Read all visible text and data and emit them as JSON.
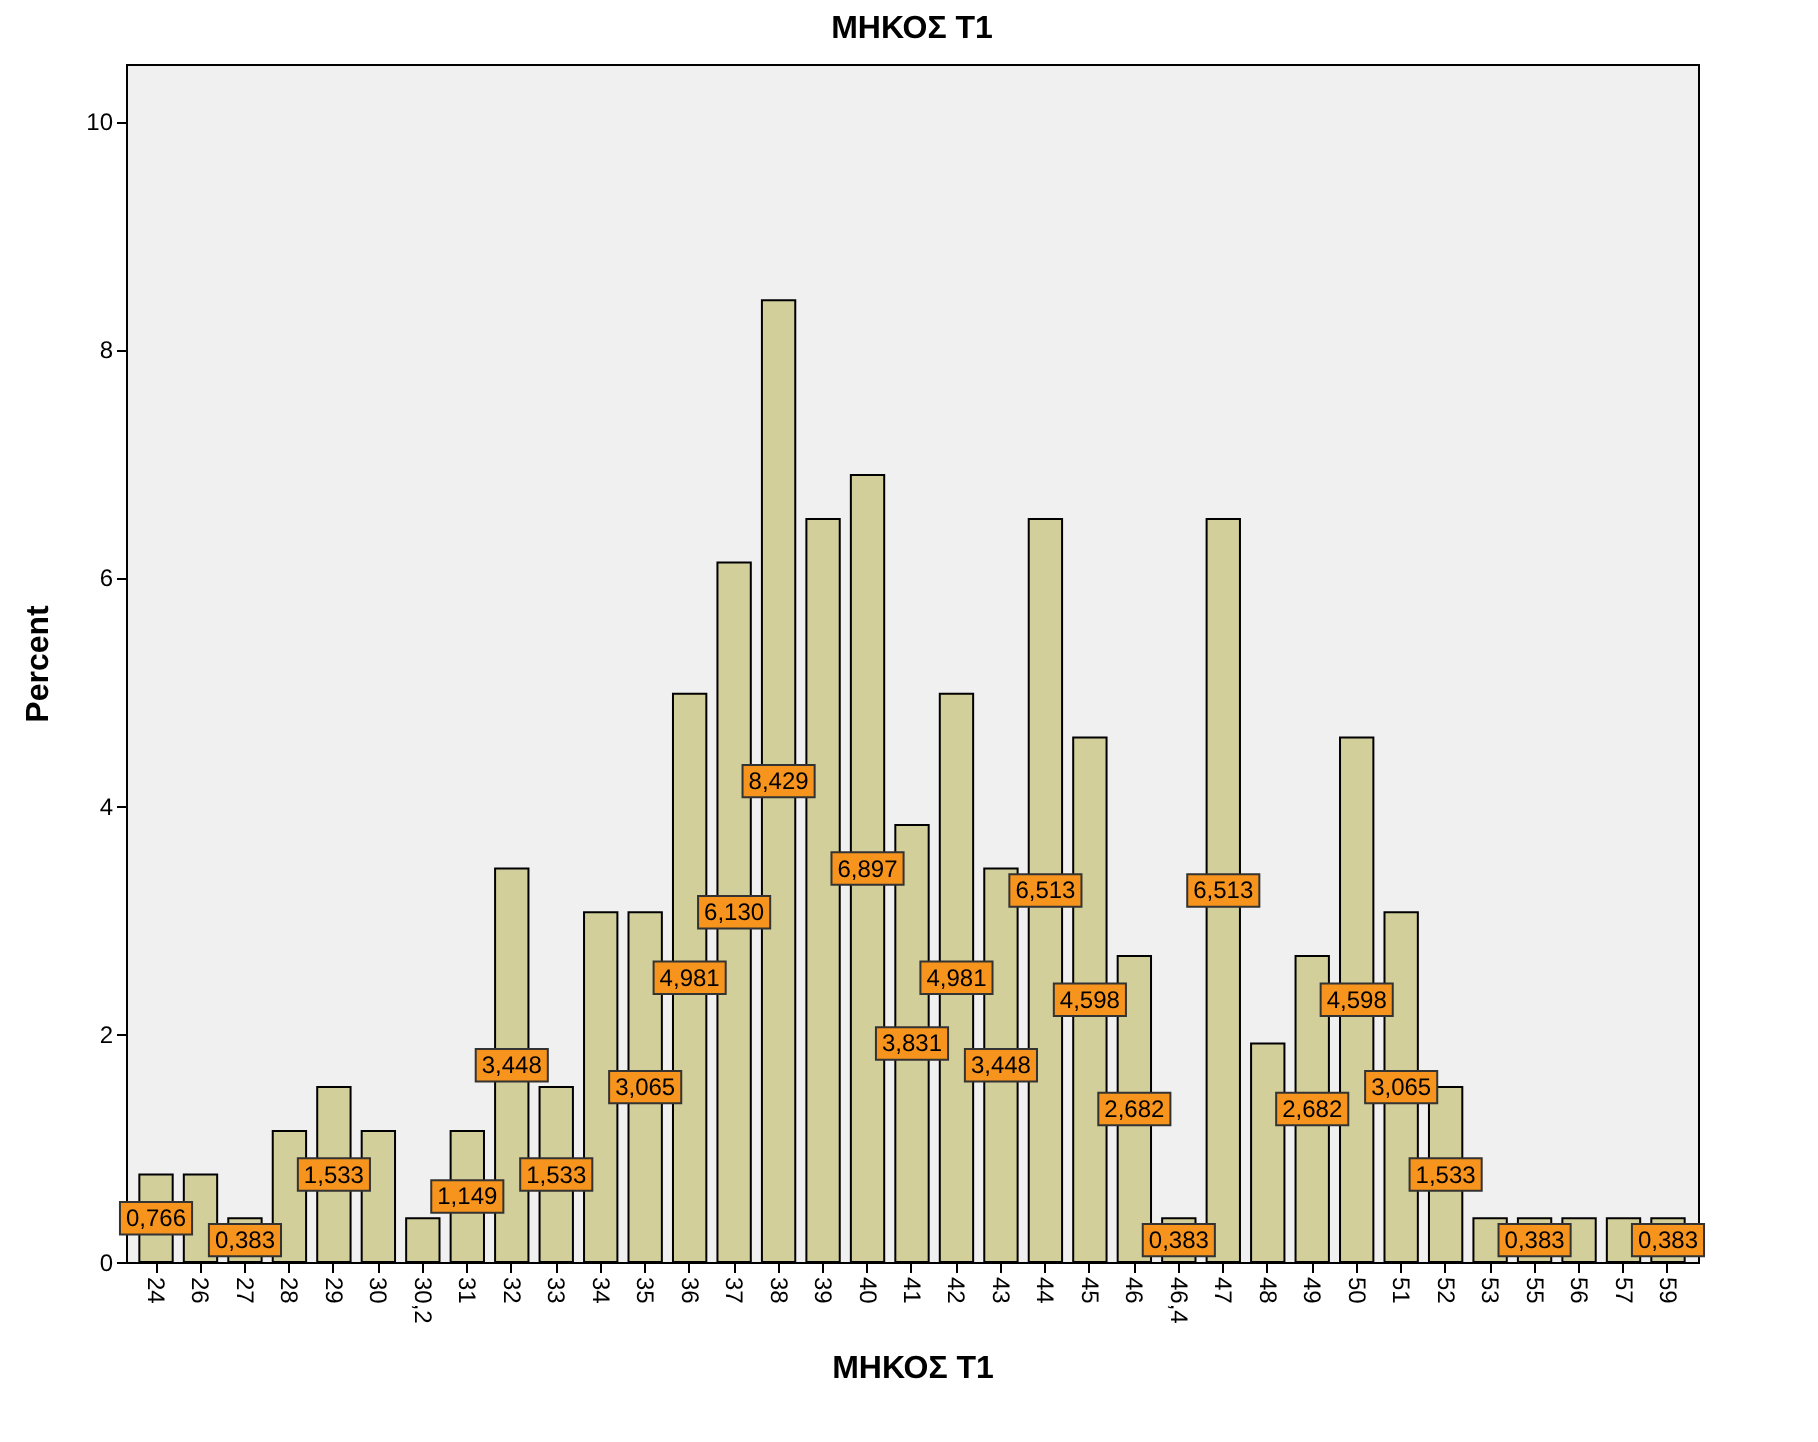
{
  "chart_data": {
    "type": "bar",
    "title": "ΜΗΚΟΣ Τ1",
    "xlabel": "ΜΗΚΟΣ Τ1",
    "ylabel": "Percent",
    "categories": [
      "24",
      "26",
      "27",
      "28",
      "29",
      "30",
      "30,2",
      "31",
      "32",
      "33",
      "34",
      "35",
      "36",
      "37",
      "38",
      "39",
      "40",
      "41",
      "42",
      "43",
      "44",
      "45",
      "46",
      "46,4",
      "47",
      "48",
      "49",
      "50",
      "51",
      "52",
      "53",
      "55",
      "56",
      "57",
      "59"
    ],
    "values": [
      0.766,
      0.766,
      0.383,
      1.149,
      1.533,
      1.149,
      0.383,
      1.149,
      3.448,
      1.533,
      3.065,
      3.065,
      4.981,
      6.13,
      8.429,
      6.513,
      6.897,
      3.831,
      4.981,
      3.448,
      6.513,
      4.598,
      2.682,
      0.383,
      6.513,
      1.916,
      2.682,
      4.598,
      3.065,
      1.533,
      0.383,
      0.383,
      0.383,
      0.383,
      0.383
    ],
    "value_labels": [
      "0,766",
      null,
      "0,383",
      null,
      "1,533",
      null,
      null,
      "1,149",
      "3,448",
      "1,533",
      null,
      "3,065",
      "4,981",
      "6,130",
      "8,429",
      null,
      "6,897",
      "3,831",
      "4,981",
      "3,448",
      "6,513",
      "4,598",
      "2,682",
      "0,383",
      "6,513",
      null,
      "2,682",
      "4,598",
      "3,065",
      "1,533",
      null,
      "0,383",
      null,
      null,
      "0,383"
    ],
    "color": "#d3cf9a",
    "ylim": [
      0,
      10.5
    ],
    "yticks": [
      0,
      2,
      4,
      6,
      8,
      10
    ],
    "grid": false
  }
}
